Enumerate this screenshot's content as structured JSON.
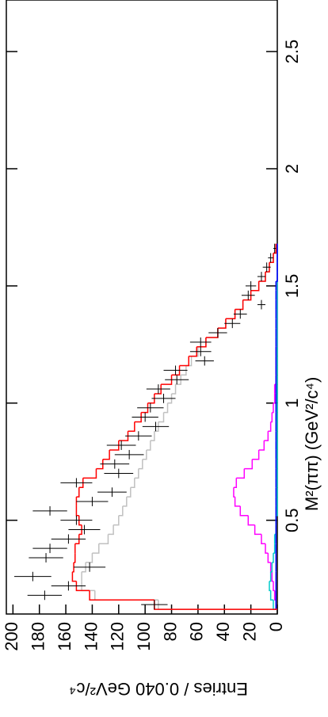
{
  "chart_data": {
    "type": "histogram",
    "orientation": "rotated-ccw",
    "xlabel": "M²(ππ) (GeV²/c⁴)",
    "ylabel": "Entries / 0.040 GeV²/c⁴",
    "xlim": [
      0.1,
      2.72
    ],
    "xticks": [
      0.5,
      1,
      1.5,
      2,
      2.5
    ],
    "ylim": [
      0,
      205
    ],
    "yticks": [
      0,
      20,
      40,
      60,
      80,
      100,
      120,
      140,
      160,
      180,
      200
    ],
    "bins": [
      0.12,
      0.16,
      0.2,
      0.24,
      0.28,
      0.32,
      0.36,
      0.4,
      0.44,
      0.48,
      0.52,
      0.56,
      0.6,
      0.64,
      0.68,
      0.72,
      0.76,
      0.8,
      0.84,
      0.88,
      0.92,
      0.96,
      1.0,
      1.04,
      1.08,
      1.12,
      1.16,
      1.2,
      1.24,
      1.28,
      1.32,
      1.36,
      1.4,
      1.44,
      1.48,
      1.52,
      1.56,
      1.6,
      1.64,
      1.68
    ],
    "series": [
      {
        "color": "#c0c0c0",
        "values": [
          90,
          138,
          148,
          148,
          145,
          140,
          135,
          128,
          124,
          120,
          117,
          114,
          111,
          108,
          105,
          102,
          99,
          96,
          93,
          90,
          86,
          83,
          80,
          77,
          73,
          69,
          65,
          60,
          54,
          45,
          39,
          32,
          26,
          20,
          14,
          9,
          6,
          3,
          1
        ]
      },
      {
        "color": "#ff00ff",
        "values": [
          1,
          2,
          3,
          4,
          5,
          7,
          9,
          12,
          17,
          22,
          28,
          32,
          33,
          31,
          25,
          19,
          14,
          10,
          7,
          5,
          4,
          3,
          2,
          2,
          1,
          1,
          1,
          1,
          0,
          0,
          0,
          0,
          0,
          0,
          0,
          0,
          0,
          0,
          0
        ]
      },
      {
        "color": "#00cccc",
        "values": [
          3,
          5,
          6,
          5,
          4,
          3,
          2,
          2,
          1,
          1,
          0,
          0,
          0,
          0,
          0,
          0,
          0,
          0,
          0,
          0,
          0,
          0,
          0,
          0,
          0,
          0,
          0,
          0,
          0,
          0,
          0,
          0,
          0,
          0,
          0,
          0,
          0,
          0,
          0
        ]
      },
      {
        "color": "#0000ff",
        "values": [
          1,
          1,
          1,
          1,
          1,
          1,
          1,
          1,
          1,
          1,
          1,
          1,
          1,
          1,
          1,
          1,
          1,
          1,
          1,
          1,
          1,
          1,
          1,
          1,
          1,
          1,
          1,
          1,
          1,
          1,
          1,
          1,
          1,
          1,
          1,
          0,
          0,
          0,
          0
        ]
      },
      {
        "color": "#ff0000",
        "values": [
          93,
          142,
          152,
          155,
          154,
          153,
          153,
          150,
          148,
          150,
          152,
          152,
          150,
          147,
          137,
          132,
          127,
          120,
          113,
          108,
          103,
          98,
          93,
          88,
          80,
          74,
          67,
          61,
          54,
          45,
          39,
          32,
          26,
          20,
          14,
          9,
          6,
          3,
          1
        ]
      }
    ],
    "points": {
      "color": "#000000",
      "values": [
        93,
        176,
        158,
        185,
        142,
        175,
        172,
        158,
        146,
        152,
        172,
        140,
        125,
        152,
        120,
        123,
        112,
        118,
        105,
        92,
        100,
        96,
        86,
        90,
        76,
        77,
        55,
        58,
        58,
        45,
        34,
        28,
        12,
        22,
        20,
        12,
        8,
        5,
        2
      ],
      "errors": [
        10,
        13,
        13,
        14,
        12,
        13,
        13,
        13,
        12,
        12,
        13,
        12,
        11,
        12,
        11,
        11,
        11,
        11,
        10,
        10,
        10,
        10,
        9,
        9,
        9,
        9,
        7,
        8,
        8,
        7,
        6,
        5,
        3,
        5,
        4,
        3,
        3,
        2,
        1
      ]
    }
  }
}
